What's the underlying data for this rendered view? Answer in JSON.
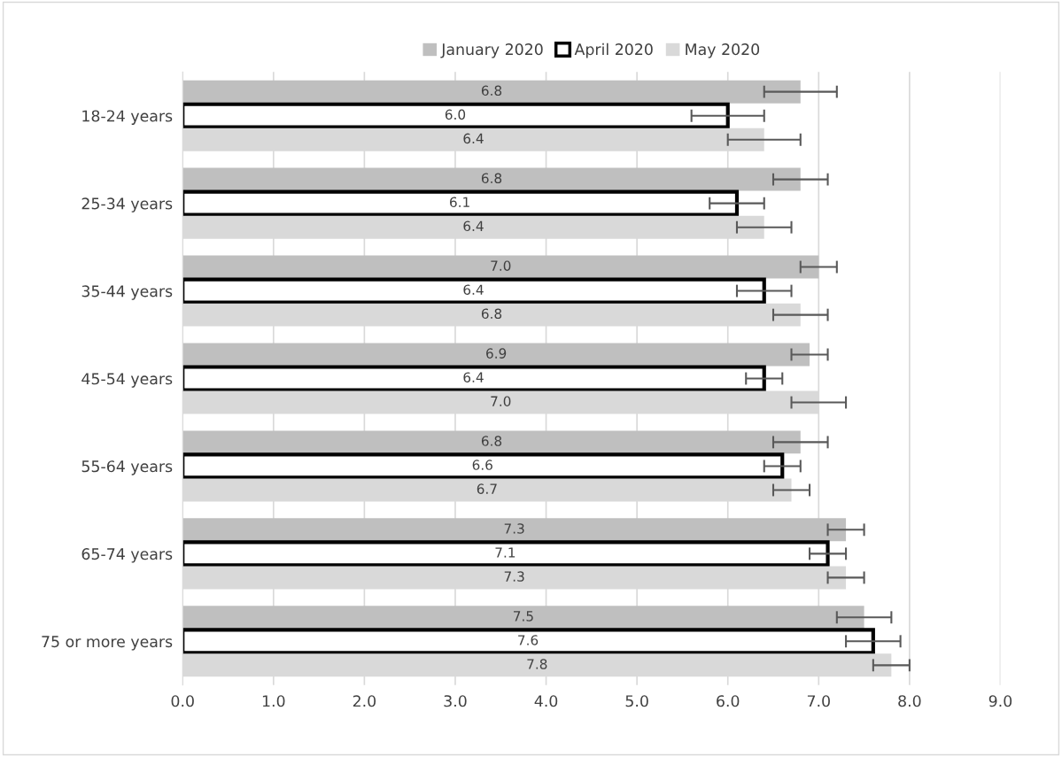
{
  "chart_data": {
    "type": "bar",
    "orientation": "horizontal",
    "categories": [
      "18-24 years",
      "25-34 years",
      "35-44 years",
      "45-54 years",
      "55-64 years",
      "65-74 years",
      "75 or more years"
    ],
    "series": [
      {
        "name": "January 2020",
        "color": "#bfbfbf",
        "values": [
          6.8,
          6.8,
          7.0,
          6.9,
          6.8,
          7.3,
          7.5
        ],
        "value_labels": [
          "6.8",
          "6.8",
          "7.0",
          "6.9",
          "6.8",
          "7.3",
          "7.5"
        ],
        "errors": [
          0.4,
          0.3,
          0.2,
          0.2,
          0.3,
          0.2,
          0.3
        ]
      },
      {
        "name": "April 2020",
        "color": "#ffffff",
        "values": [
          6.0,
          6.1,
          6.4,
          6.4,
          6.6,
          7.1,
          7.6
        ],
        "value_labels": [
          "6.0",
          "6.1",
          "6.4",
          "6.4",
          "6.6",
          "7.1",
          "7.6"
        ],
        "errors": [
          0.4,
          0.3,
          0.3,
          0.2,
          0.2,
          0.2,
          0.3
        ]
      },
      {
        "name": "May 2020",
        "color": "#d9d9d9",
        "values": [
          6.4,
          6.4,
          6.8,
          7.0,
          6.7,
          7.3,
          7.8
        ],
        "value_labels": [
          "6.4",
          "6.4",
          "6.8",
          "7.0",
          "6.7",
          "7.3",
          "7.8"
        ],
        "errors": [
          0.4,
          0.3,
          0.3,
          0.3,
          0.2,
          0.2,
          0.2
        ]
      }
    ],
    "xlim": [
      0,
      9
    ],
    "xticks": [
      {
        "value": 0,
        "label": "0.0"
      },
      {
        "value": 1,
        "label": "1.0"
      },
      {
        "value": 2,
        "label": "2.0"
      },
      {
        "value": 3,
        "label": "3.0"
      },
      {
        "value": 4,
        "label": "4.0"
      },
      {
        "value": 5,
        "label": "5.0"
      },
      {
        "value": 6,
        "label": "6.0"
      },
      {
        "value": 7,
        "label": "7.0"
      },
      {
        "value": 8,
        "label": "8.0"
      },
      {
        "value": 9,
        "label": "9.0"
      }
    ],
    "grid": "x",
    "legend": "top"
  }
}
